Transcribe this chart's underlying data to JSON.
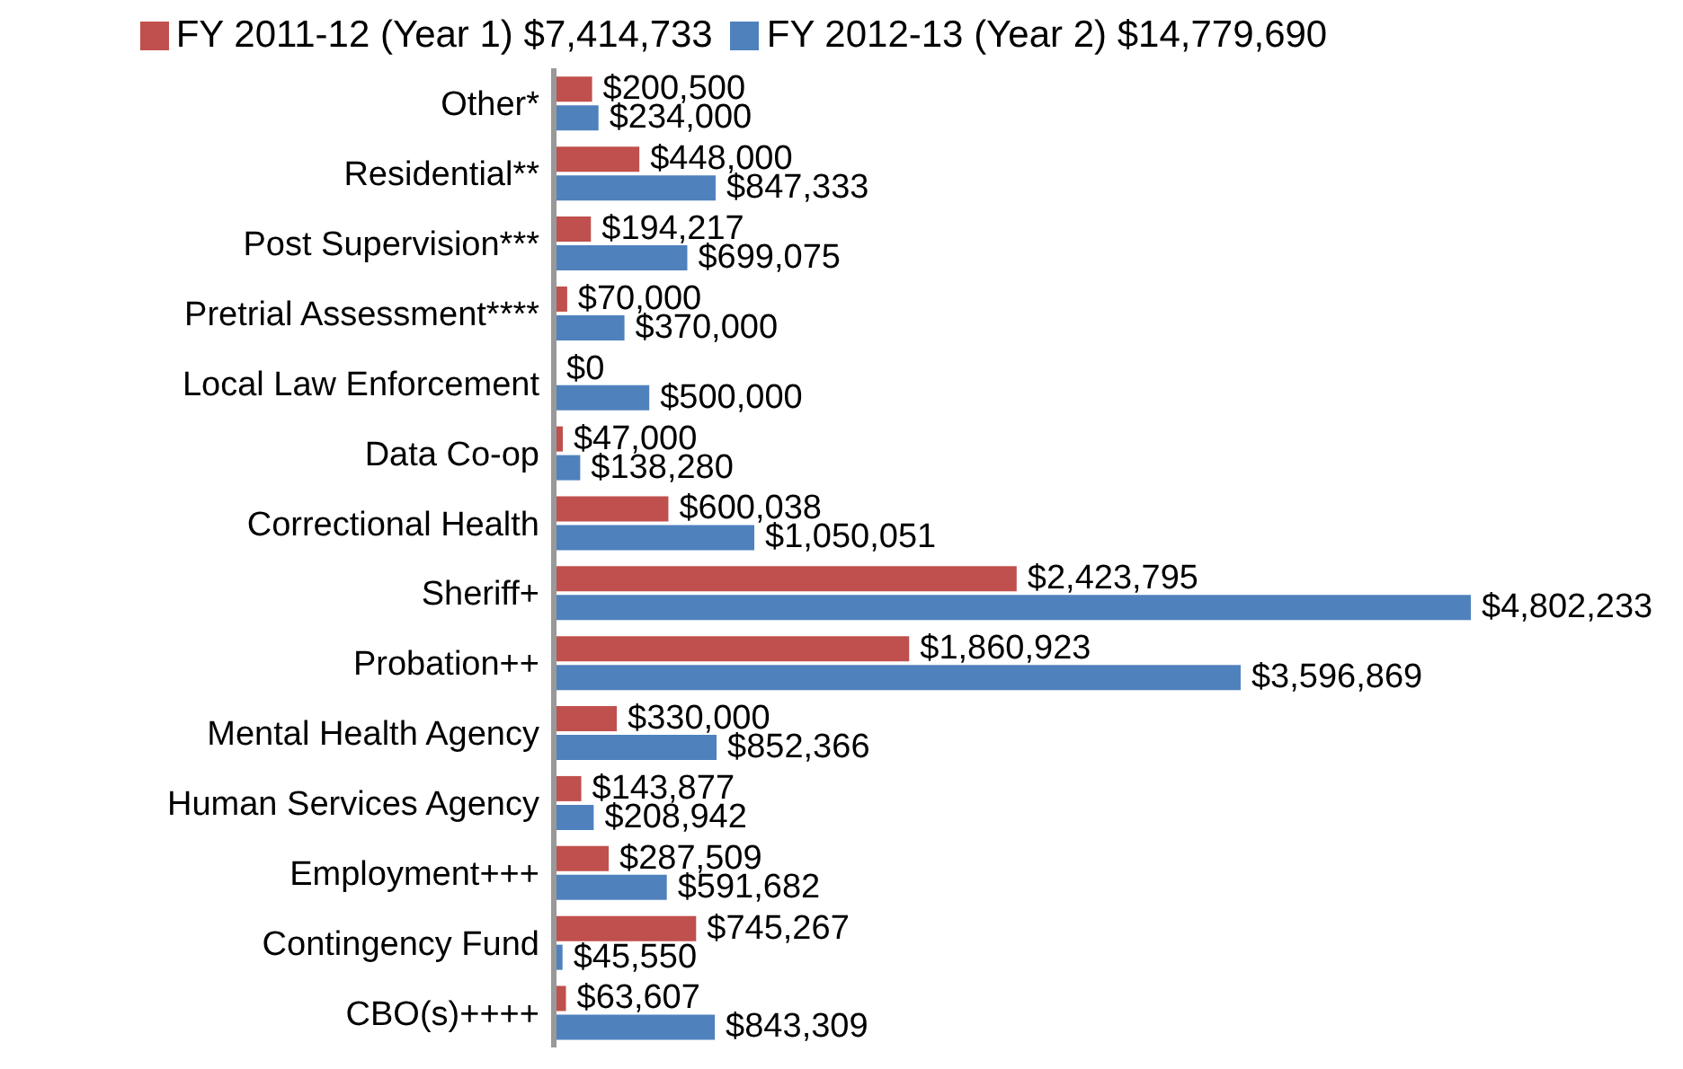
{
  "chart_data": {
    "type": "bar",
    "orientation": "horizontal",
    "legend": "top",
    "categories": [
      "Other*",
      "Residential**",
      "Post Supervision***",
      "Pretrial Assessment****",
      "Local Law Enforcement",
      "Data Co-op",
      "Correctional Health",
      "Sheriff+",
      "Probation++",
      "Mental Health Agency",
      "Human Services Agency",
      "Employment+++",
      "Contingency Fund",
      "CBO(s)++++"
    ],
    "series": [
      {
        "name": "FY 2011-12 (Year 1) $7,414,733",
        "color": "#c0504d",
        "values": [
          200500,
          448000,
          194217,
          70000,
          0,
          47000,
          600038,
          2423795,
          1860923,
          330000,
          143877,
          287509,
          745267,
          63607
        ],
        "value_labels": [
          "$200,500",
          "$448,000",
          "$194,217",
          "$70,000",
          "$0",
          "$47,000",
          "$600,038",
          "$2,423,795",
          "$1,860,923",
          "$330,000",
          "$143,877",
          "$287,509",
          "$745,267",
          "$63,607"
        ]
      },
      {
        "name": "FY 2012-13 (Year 2) $14,779,690",
        "color": "#4f81bd",
        "values": [
          234000,
          847333,
          699075,
          370000,
          500000,
          138280,
          1050051,
          4802233,
          3596869,
          852366,
          208942,
          591682,
          45550,
          843309
        ],
        "value_labels": [
          "$234,000",
          "$847,333",
          "$699,075",
          "$370,000",
          "$500,000",
          "$138,280",
          "$1,050,051",
          "$4,802,233",
          "$3,596,869",
          "$852,366",
          "$208,942",
          "$591,682",
          "$45,550",
          "$843,309"
        ]
      }
    ]
  }
}
